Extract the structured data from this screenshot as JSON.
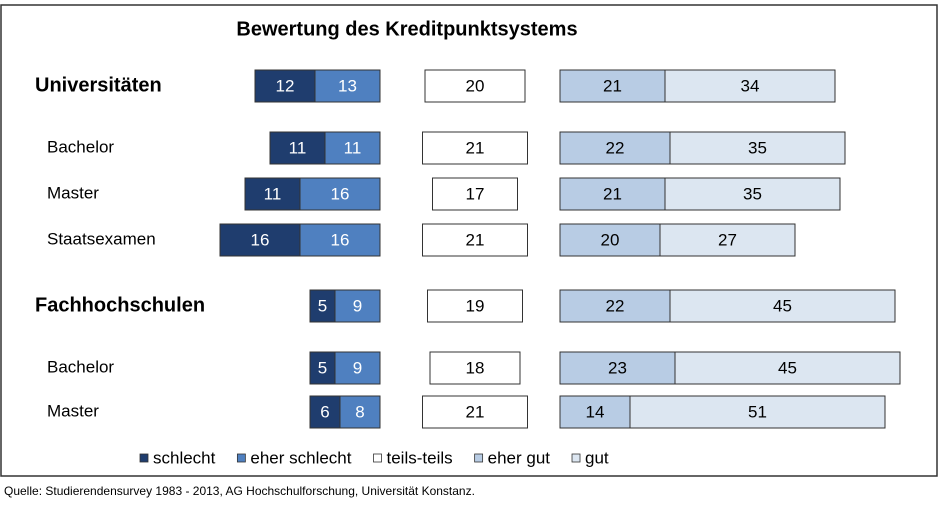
{
  "chart_data": {
    "type": "diverging-bar",
    "title": "Bewertung des Kreditpunktsystems",
    "categories": [
      "Universitäten",
      "Bachelor",
      "Master",
      "Staatsexamen",
      "Fachhochschulen",
      "Bachelor",
      "Master"
    ],
    "series": [
      {
        "name": "schlecht",
        "color": "#1f3d6e",
        "values": [
          12,
          11,
          11,
          16,
          5,
          5,
          6
        ]
      },
      {
        "name": "eher schlecht",
        "color": "#4f80c0",
        "values": [
          13,
          11,
          16,
          16,
          9,
          9,
          8
        ]
      },
      {
        "name": "teils-teils",
        "color": "#ffffff",
        "values": [
          20,
          21,
          17,
          21,
          19,
          18,
          21
        ]
      },
      {
        "name": "eher gut",
        "color": "#b8cce4",
        "values": [
          21,
          22,
          21,
          20,
          22,
          23,
          14
        ]
      },
      {
        "name": "gut",
        "color": "#dce6f1",
        "values": [
          34,
          35,
          35,
          27,
          45,
          45,
          51
        ]
      }
    ],
    "source": "Quelle: Studierendensurvey 1983 - 2013, AG Hochschulforschung, Universität Konstanz."
  }
}
